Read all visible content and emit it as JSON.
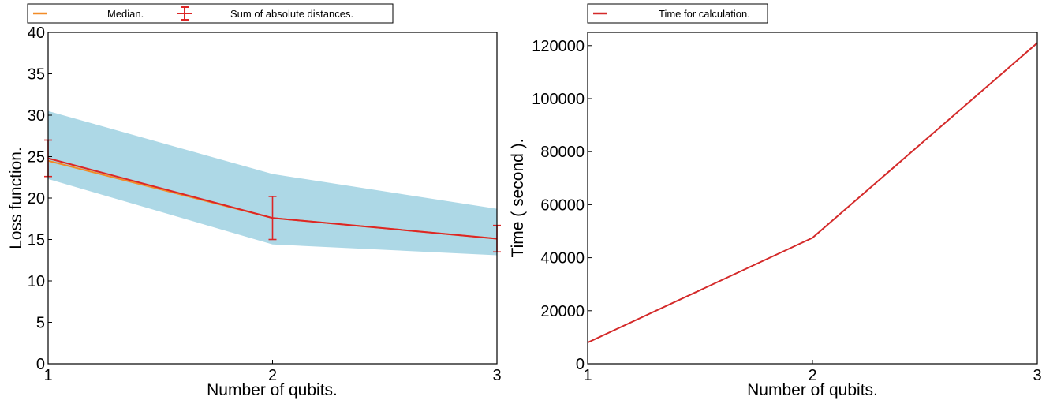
{
  "colors": {
    "median": "#f28c28",
    "sum": "#dc2626",
    "band": "#add8e6",
    "time": "#d42a2a"
  },
  "chart_data": [
    {
      "type": "line",
      "xlabel": "Number of qubits.",
      "ylabel": "Loss function.",
      "x": [
        1,
        2,
        3
      ],
      "xticks": [
        "1",
        "2",
        "3"
      ],
      "xlim": [
        1,
        3
      ],
      "ylim": [
        0,
        40
      ],
      "yticks": [
        "0",
        "5",
        "10",
        "15",
        "20",
        "25",
        "30",
        "35",
        "40"
      ],
      "grid": false,
      "legend_position": "top",
      "band": {
        "lower": [
          22.3,
          14.4,
          13.1
        ],
        "upper": [
          30.5,
          22.9,
          18.7
        ]
      },
      "series": [
        {
          "name": "Median.",
          "values": [
            24.5,
            17.6,
            15.1
          ]
        },
        {
          "name": "Sum of absolute distances.",
          "values": [
            24.8,
            17.6,
            15.1
          ],
          "error": [
            2.2,
            2.6,
            1.6
          ]
        }
      ]
    },
    {
      "type": "line",
      "xlabel": "Number of qubits.",
      "ylabel": "Time ( second ).",
      "x": [
        1,
        2,
        3
      ],
      "xticks": [
        "1",
        "2",
        "3"
      ],
      "xlim": [
        1,
        3
      ],
      "ylim": [
        0,
        125000
      ],
      "yticks": [
        "0",
        "20000",
        "40000",
        "60000",
        "80000",
        "100000",
        "120000"
      ],
      "grid": false,
      "legend_position": "top",
      "series": [
        {
          "name": "Time for calculation.",
          "values": [
            8000,
            47500,
            121000
          ]
        }
      ]
    }
  ]
}
